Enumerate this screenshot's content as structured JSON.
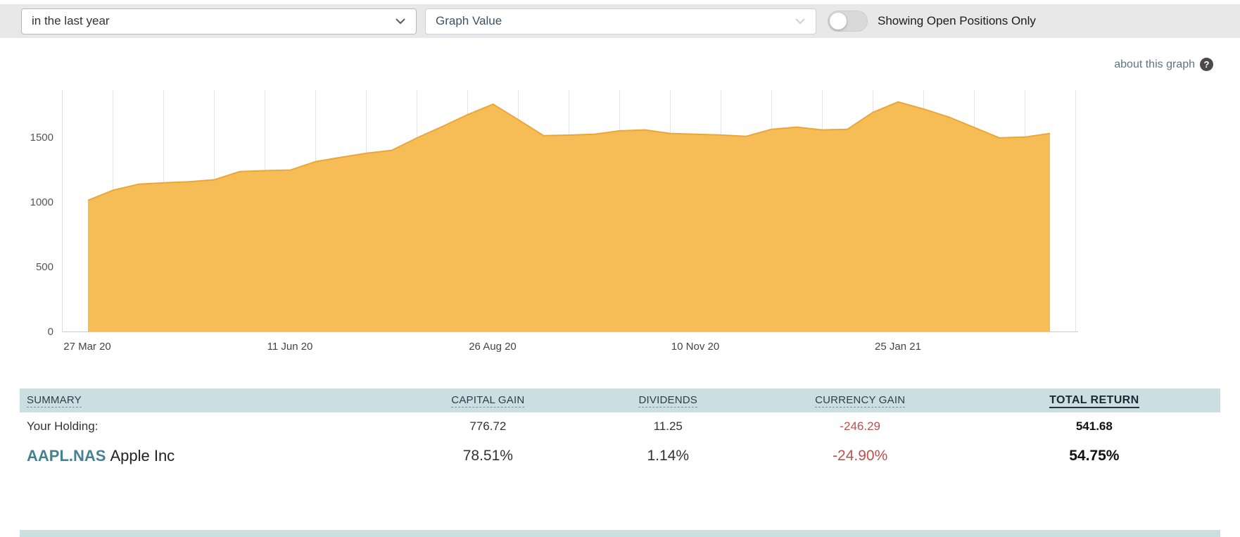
{
  "toolbar": {
    "period_select": {
      "value": "in the last year"
    },
    "metric_select": {
      "value": "Graph Value"
    },
    "open_positions_toggle": {
      "label": "Showing Open Positions Only",
      "state": "off"
    }
  },
  "graph_header": {
    "about_link": "about this graph",
    "help_glyph": "?"
  },
  "chart_data": {
    "type": "area",
    "title": "",
    "xlabel": "",
    "ylabel": "",
    "x_tick_labels": [
      "27 Mar 20",
      "11 Jun 20",
      "26 Aug 20",
      "10 Nov 20",
      "25 Jan 21"
    ],
    "y_ticks": [
      0,
      500,
      1000,
      1500
    ],
    "ylim": [
      0,
      1870
    ],
    "grid": "vertical",
    "legend": "none",
    "fill_color": "#f6bd57",
    "line_color": "#e9a63a",
    "values": [
      1016,
      1095,
      1141,
      1152,
      1160,
      1176,
      1239,
      1246,
      1251,
      1316,
      1349,
      1381,
      1403,
      1500,
      1588,
      1680,
      1761,
      1640,
      1517,
      1521,
      1528,
      1554,
      1561,
      1534,
      1528,
      1522,
      1512,
      1566,
      1583,
      1561,
      1566,
      1697,
      1778,
      1724,
      1661,
      1581,
      1500,
      1506,
      1534
    ]
  },
  "summary_table": {
    "headers": [
      "SUMMARY",
      "CAPITAL GAIN",
      "DIVIDENDS",
      "CURRENCY GAIN",
      "TOTAL RETURN"
    ],
    "rows": [
      {
        "label": "Your Holding:",
        "capital_gain": "776.72",
        "dividends": "11.25",
        "currency_gain": "-246.29",
        "total_return": "541.68"
      },
      {
        "ticker": "AAPL.NAS",
        "name": "Apple Inc",
        "capital_gain": "78.51%",
        "dividends": "1.14%",
        "currency_gain": "-24.90%",
        "total_return": "54.75%"
      }
    ]
  },
  "colors": {
    "negative": "#c0504d",
    "ticker": "#47808f",
    "table_header_bg": "#cbdee2",
    "chart_fill": "#f6bd57",
    "chart_line": "#e9a63a",
    "toolbar_bg": "#e8e8e8"
  }
}
